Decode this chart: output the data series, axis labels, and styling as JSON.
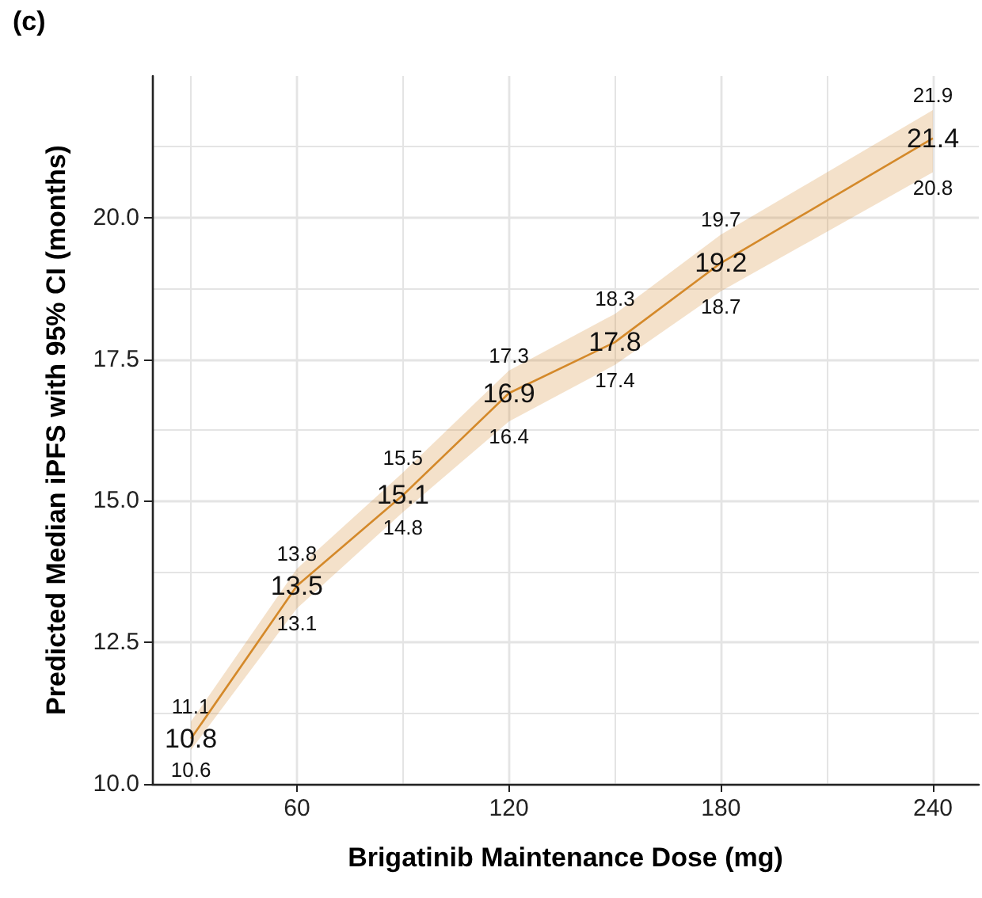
{
  "chart_data": {
    "type": "line",
    "xlabel": "Brigatinib Maintenance Dose (mg)",
    "ylabel": "Predicted Median iPFS with 95% CI (months)",
    "annotations": [
      "(c)",
      {
        "text": "11.1",
        "x": 30,
        "y": 11.1
      },
      {
        "text": "10.6",
        "x": 30,
        "y": 10.6
      },
      {
        "text": "13.8",
        "x": 60,
        "y": 13.8
      },
      {
        "text": "13.1",
        "x": 60,
        "y": 13.1
      },
      {
        "text": "15.5",
        "x": 90,
        "y": 15.5
      },
      {
        "text": "14.8",
        "x": 90,
        "y": 14.8
      },
      {
        "text": "17.3",
        "x": 120,
        "y": 17.3
      },
      {
        "text": "16.4",
        "x": 120,
        "y": 16.4
      },
      {
        "text": "18.3",
        "x": 150,
        "y": 18.3
      },
      {
        "text": "17.4",
        "x": 150,
        "y": 17.4
      },
      {
        "text": "19.7",
        "x": 180,
        "y": 19.7
      },
      {
        "text": "18.7",
        "x": 180,
        "y": 18.7
      },
      {
        "text": "21.9",
        "x": 240,
        "y": 21.9
      },
      {
        "text": "20.8",
        "x": 240,
        "y": 20.8
      }
    ],
    "x": [
      30,
      60,
      90,
      120,
      150,
      180,
      240
    ],
    "series": [
      {
        "color": "#d4892a",
        "values": [
          10.8,
          13.5,
          15.1,
          16.9,
          17.8,
          19.2,
          21.4
        ],
        "lower": [
          10.6,
          13.1,
          14.8,
          16.4,
          17.4,
          18.7,
          20.8
        ],
        "upper": [
          11.1,
          13.8,
          15.5,
          17.3,
          18.3,
          19.7,
          21.9
        ]
      }
    ],
    "data_labels": true,
    "marker": "none",
    "line_style": "solid",
    "grid": true,
    "xlim": [
      19,
      253
    ],
    "xticks": [
      60,
      120,
      180,
      240
    ],
    "ylim": [
      10,
      22.5
    ],
    "yticks": [
      {
        "value": 10,
        "label": "10.0"
      },
      {
        "value": 12.5,
        "label": "12.5"
      },
      {
        "value": 15,
        "label": "15.0"
      },
      {
        "value": 17.5,
        "label": "17.5"
      },
      {
        "value": 20,
        "label": "20.0"
      }
    ]
  }
}
